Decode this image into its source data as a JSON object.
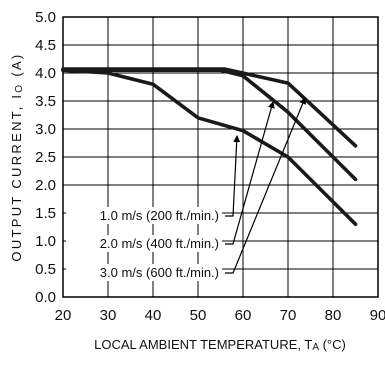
{
  "chart_data": {
    "type": "line",
    "xlabel": "LOCAL AMBIENT TEMPERATURE, TA (°C)",
    "xlabel_main": "LOCAL AMBIENT TEMPERATURE, T",
    "xlabel_sub": "A",
    "xlabel_tail": " (°C)",
    "ylabel": "OUTPUT CURRENT, IO (A)",
    "ylabel_main": "OUTPUT CURRENT, I",
    "ylabel_sub": "O",
    "ylabel_tail": " (A)",
    "xlim": [
      20,
      90
    ],
    "ylim": [
      0,
      5
    ],
    "x_ticks": [
      "20",
      "30",
      "40",
      "50",
      "60",
      "70",
      "80",
      "90"
    ],
    "y_ticks": [
      "0.0",
      "0.5",
      "1.0",
      "1.5",
      "2.0",
      "2.5",
      "3.0",
      "3.5",
      "4.0",
      "4.5",
      "5.0"
    ],
    "grid": true,
    "series": [
      {
        "name": "1.0 m/s (200 ft./min.)",
        "x": [
          20,
          30,
          40,
          50,
          60,
          70,
          85
        ],
        "y": [
          4.05,
          4.0,
          3.8,
          3.2,
          2.97,
          2.5,
          1.3
        ]
      },
      {
        "name": "2.0 m/s (400 ft./min.)",
        "x": [
          20,
          55,
          60,
          70,
          85
        ],
        "y": [
          4.05,
          4.05,
          3.95,
          3.3,
          2.1
        ]
      },
      {
        "name": "3.0 m/s (600 ft./min.)",
        "x": [
          20,
          56,
          70,
          85
        ],
        "y": [
          4.07,
          4.07,
          3.82,
          2.7
        ]
      }
    ]
  }
}
